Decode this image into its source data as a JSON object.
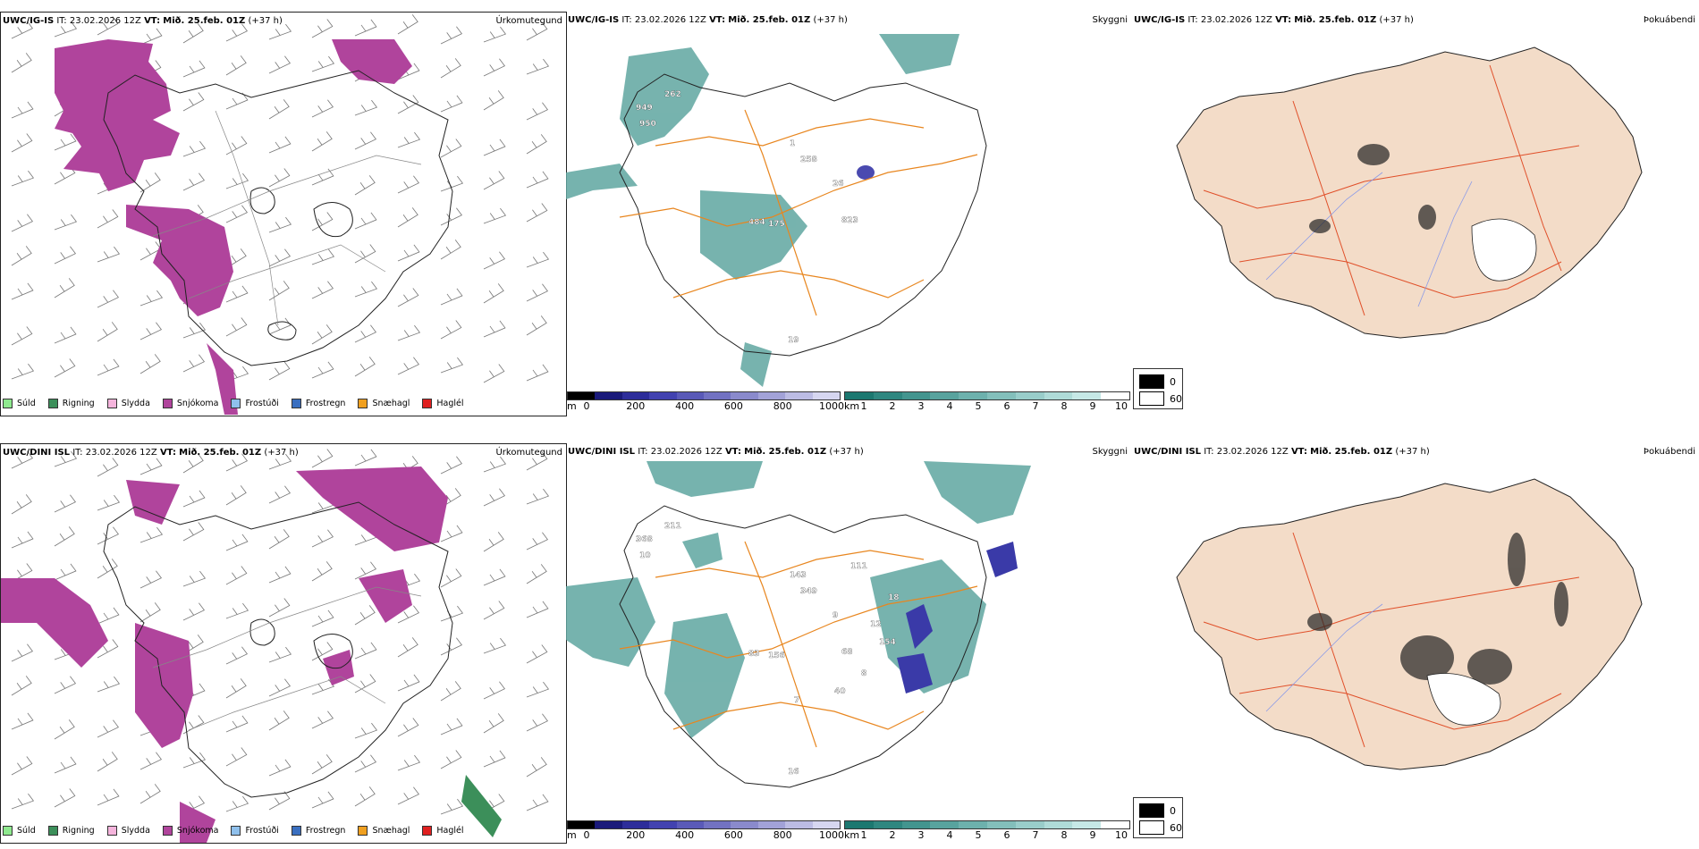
{
  "row1": {
    "model": "UWC/IG-IS",
    "it_label": "IT:",
    "it_value": "23.02.2026 12Z",
    "vt_label": "VT:",
    "vt_value": "Mið. 25.feb. 01Z",
    "lead": "(+37 h)"
  },
  "row2": {
    "model": "UWC/DINI ISL",
    "it_label": "IT:",
    "it_value": "23.02.2026 12Z",
    "vt_label": "VT:",
    "vt_value": "Mið. 25.feb. 01Z",
    "lead": "(+37 h)"
  },
  "titles": {
    "precip_type": "Úrkomutegund",
    "visibility": "Skyggni",
    "fog": "Þokuábendi"
  },
  "precip_legend": [
    {
      "label": "Súld",
      "color": "#8fe98f"
    },
    {
      "label": "Rigning",
      "color": "#3c8f5a"
    },
    {
      "label": "Slydda",
      "color": "#f5b4dc"
    },
    {
      "label": "Snjókoma",
      "color": "#b0449c"
    },
    {
      "label": "Frostúði",
      "color": "#8fc0ec"
    },
    {
      "label": "Frostregn",
      "color": "#3a6fc0"
    },
    {
      "label": "Snæhagl",
      "color": "#f0a020"
    },
    {
      "label": "Haglél",
      "color": "#e02020"
    }
  ],
  "vis_scale_m": {
    "unit": "m",
    "ticks": [
      "0",
      "200",
      "400",
      "600",
      "800",
      "1000"
    ],
    "colors": [
      "#000000",
      "#1a1a7a",
      "#2d2d9a",
      "#4242b0",
      "#5a5ab8",
      "#7272c2",
      "#8a8acc",
      "#a2a2d8",
      "#bcbce4",
      "#d6d6f0"
    ]
  },
  "vis_scale_km": {
    "unit": "km",
    "ticks": [
      "1",
      "2",
      "3",
      "4",
      "5",
      "6",
      "7",
      "8",
      "9",
      "10"
    ],
    "colors": [
      "#1c7870",
      "#2f8780",
      "#43958f",
      "#58a39e",
      "#6db1ad",
      "#83bfbb",
      "#99cdca",
      "#afdbd8",
      "#c6e8e6",
      "#ffffff"
    ]
  },
  "fog_legend": {
    "low": "0",
    "high": "60"
  },
  "vis_labels_row1": [
    "262",
    "949",
    "950",
    "1",
    "258",
    "26",
    "484",
    "175",
    "823",
    "19"
  ],
  "vis_labels_row2": [
    "211",
    "368",
    "10",
    "143",
    "349",
    "9",
    "83",
    "156",
    "68",
    "16",
    "111",
    "18",
    "12",
    "154",
    "8",
    "40",
    "7"
  ]
}
